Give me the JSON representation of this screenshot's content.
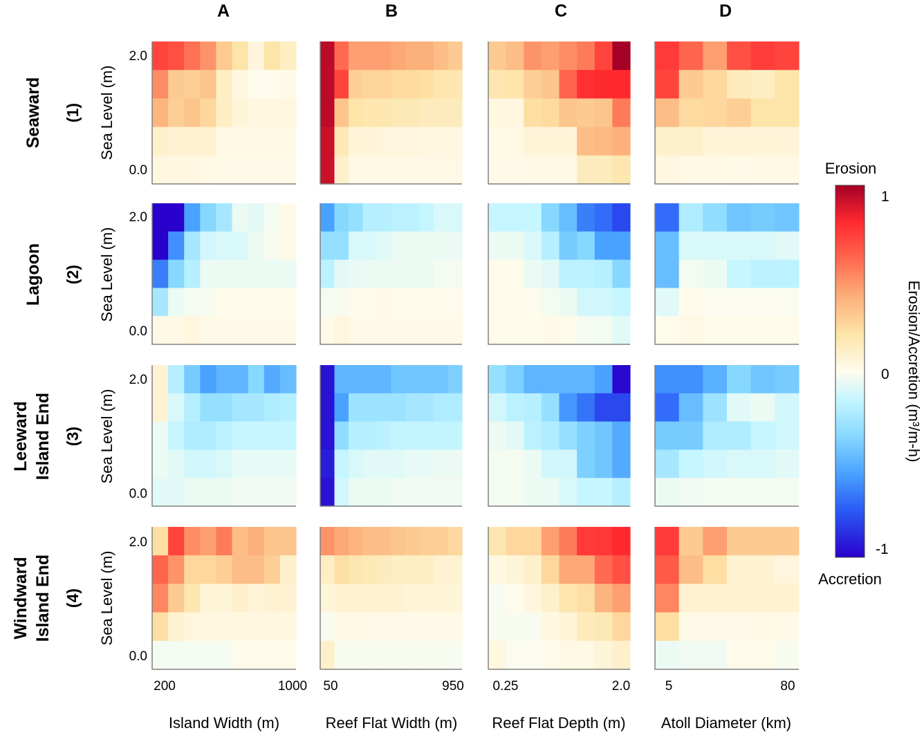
{
  "chart_data": {
    "type": "heatmap",
    "colormap": {
      "stops": [
        [
          -1.0,
          "#2a00cc"
        ],
        [
          -0.75,
          "#2a5af5"
        ],
        [
          -0.55,
          "#4aa2ff"
        ],
        [
          -0.35,
          "#86d8ff"
        ],
        [
          -0.15,
          "#c6f6ff"
        ],
        [
          0.0,
          "#fffcee"
        ],
        [
          0.2,
          "#fde4a8"
        ],
        [
          0.4,
          "#fcb07a"
        ],
        [
          0.6,
          "#ff6a50"
        ],
        [
          0.8,
          "#ff2a30"
        ],
        [
          1.0,
          "#a50026"
        ]
      ]
    },
    "ylabel": "Sea Level (m)",
    "y_tick_labels": [
      "2.0",
      "0.0"
    ],
    "columns": [
      {
        "letter": "A",
        "xlabel": "Island Width (m)",
        "x_tick_labels": [
          "200",
          "1000"
        ]
      },
      {
        "letter": "B",
        "xlabel": "Reef Flat Width (m)",
        "x_tick_labels": [
          "50",
          "950"
        ]
      },
      {
        "letter": "C",
        "xlabel": "Reef Flat Depth (m)",
        "x_tick_labels": [
          "0.25",
          "2.0"
        ]
      },
      {
        "letter": "D",
        "xlabel": "Atoll Diameter (km)",
        "x_tick_labels": [
          "5",
          "80"
        ]
      }
    ],
    "rows": [
      {
        "name_lines": [
          "Seaward"
        ],
        "number": "(1)"
      },
      {
        "name_lines": [
          "Lagoon"
        ],
        "number": "(2)"
      },
      {
        "name_lines": [
          "Leeward",
          "Island End"
        ],
        "number": "(3)"
      },
      {
        "name_lines": [
          "Windward",
          "Island End"
        ],
        "number": "(4)"
      }
    ],
    "colorbar": {
      "top_label": "Erosion",
      "bottom_label": "Accretion",
      "label": "Erosion/Accretion (m³/m-h)",
      "tick_labels": [
        "1",
        "0",
        "-1"
      ],
      "range": [
        -1,
        1
      ]
    },
    "panels": [
      [
        [
          [
            0.72,
            0.68,
            0.58,
            0.48,
            0.3,
            0.2,
            0.05,
            0.2,
            0.12
          ],
          [
            0.5,
            0.3,
            0.28,
            0.32,
            0.12,
            0.04,
            0.0,
            0.0,
            0.02
          ],
          [
            0.38,
            0.28,
            0.32,
            0.25,
            0.12,
            0.06,
            0.04,
            0.04,
            0.04
          ],
          [
            0.1,
            0.08,
            0.08,
            0.08,
            0.03,
            0.03,
            0.03,
            0.03,
            0.03
          ],
          [
            0.04,
            0.04,
            0.04,
            0.03,
            0.02,
            0.02,
            0.02,
            0.02,
            0.02
          ]
        ],
        [
          [
            0.95,
            0.6,
            0.45,
            0.45,
            0.45,
            0.42,
            0.4,
            0.4,
            0.35,
            0.3
          ],
          [
            0.95,
            0.72,
            0.28,
            0.26,
            0.26,
            0.24,
            0.24,
            0.22,
            0.18,
            0.18
          ],
          [
            0.95,
            0.32,
            0.2,
            0.18,
            0.18,
            0.16,
            0.16,
            0.14,
            0.14,
            0.14
          ],
          [
            0.92,
            0.16,
            0.06,
            0.06,
            0.05,
            0.05,
            0.05,
            0.04,
            0.04,
            0.04
          ],
          [
            0.92,
            0.1,
            0.03,
            0.03,
            0.03,
            0.03,
            0.03,
            0.03,
            0.03,
            0.03
          ]
        ],
        [
          [
            0.3,
            0.35,
            0.48,
            0.45,
            0.5,
            0.55,
            0.72,
            1.0
          ],
          [
            0.18,
            0.2,
            0.28,
            0.32,
            0.62,
            0.78,
            0.8,
            0.8
          ],
          [
            0.04,
            0.04,
            0.22,
            0.24,
            0.32,
            0.3,
            0.32,
            0.55
          ],
          [
            0.02,
            0.03,
            0.06,
            0.06,
            0.06,
            0.35,
            0.36,
            0.4
          ],
          [
            0.02,
            0.02,
            0.03,
            0.03,
            0.03,
            0.14,
            0.14,
            0.18
          ]
        ],
        [
          [
            0.75,
            0.62,
            0.45,
            0.68,
            0.74,
            0.72
          ],
          [
            0.72,
            0.3,
            0.25,
            0.15,
            0.12,
            0.2
          ],
          [
            0.35,
            0.24,
            0.25,
            0.28,
            0.2,
            0.2
          ],
          [
            0.1,
            0.1,
            0.06,
            0.06,
            0.06,
            0.06
          ],
          [
            0.04,
            0.03,
            0.03,
            0.02,
            0.03,
            0.03
          ]
        ]
      ],
      [
        [
          [
            -1,
            -1,
            -0.55,
            -0.35,
            -0.25,
            -0.05,
            -0.07,
            -0.03,
            0.02
          ],
          [
            -1,
            -0.6,
            -0.25,
            -0.12,
            -0.1,
            -0.1,
            -0.05,
            -0.02,
            0.02
          ],
          [
            -0.65,
            -0.35,
            -0.2,
            -0.05,
            -0.05,
            -0.05,
            -0.05,
            -0.05,
            -0.05
          ],
          [
            -0.25,
            -0.05,
            -0.03,
            -0.02,
            0.01,
            0.01,
            0.01,
            0.01,
            0.01
          ],
          [
            0.03,
            0.03,
            0.05,
            0.02,
            0.02,
            0.02,
            0.02,
            0.02,
            0.02
          ]
        ],
        [
          [
            -0.55,
            -0.35,
            -0.3,
            -0.2,
            -0.2,
            -0.18,
            -0.18,
            -0.15,
            -0.1,
            -0.1
          ],
          [
            -0.3,
            -0.3,
            -0.1,
            -0.1,
            -0.08,
            -0.05,
            -0.05,
            -0.05,
            -0.05,
            -0.05
          ],
          [
            -0.18,
            -0.07,
            -0.06,
            -0.05,
            -0.05,
            -0.05,
            -0.05,
            -0.05,
            -0.03,
            -0.03
          ],
          [
            -0.03,
            -0.02,
            0.01,
            0.01,
            0.02,
            0.01,
            0.01,
            0.01,
            0.01,
            0.01
          ],
          [
            0.02,
            0.05,
            0.02,
            0.02,
            0.02,
            0.02,
            0.02,
            0.02,
            0.02,
            0.02
          ]
        ],
        [
          [
            -0.15,
            -0.15,
            -0.15,
            -0.35,
            -0.45,
            -0.65,
            -0.7,
            -0.8
          ],
          [
            -0.05,
            -0.05,
            -0.1,
            -0.2,
            -0.4,
            -0.35,
            -0.55,
            -0.55
          ],
          [
            0.01,
            0.01,
            -0.05,
            -0.08,
            -0.18,
            -0.18,
            -0.2,
            -0.35
          ],
          [
            0.01,
            0.01,
            0.01,
            -0.03,
            -0.05,
            -0.12,
            -0.12,
            -0.15
          ],
          [
            0.01,
            0.01,
            0.01,
            0.02,
            0.01,
            -0.03,
            -0.03,
            -0.08
          ]
        ],
        [
          [
            -0.7,
            -0.22,
            -0.32,
            -0.42,
            -0.4,
            -0.42
          ],
          [
            -0.45,
            -0.1,
            -0.1,
            -0.1,
            -0.1,
            -0.08
          ],
          [
            -0.45,
            -0.03,
            -0.05,
            -0.15,
            -0.18,
            -0.18
          ],
          [
            -0.08,
            0.01,
            -0.01,
            -0.01,
            -0.01,
            -0.01
          ],
          [
            0.01,
            0.03,
            0.01,
            0.01,
            0.01,
            0.01
          ]
        ]
      ],
      [
        [
          [
            0.08,
            -0.2,
            -0.4,
            -0.55,
            -0.48,
            -0.48,
            -0.35,
            -0.52,
            -0.45
          ],
          [
            0.08,
            -0.1,
            -0.2,
            -0.3,
            -0.3,
            -0.25,
            -0.25,
            -0.22,
            -0.2
          ],
          [
            -0.05,
            -0.15,
            -0.22,
            -0.22,
            -0.18,
            -0.15,
            -0.15,
            -0.15,
            -0.15
          ],
          [
            -0.05,
            -0.08,
            -0.12,
            -0.12,
            -0.1,
            -0.06,
            -0.06,
            -0.06,
            -0.06
          ],
          [
            -0.08,
            -0.08,
            -0.05,
            -0.05,
            -0.05,
            -0.04,
            -0.04,
            -0.04,
            -0.04
          ]
        ],
        [
          [
            -0.95,
            -0.48,
            -0.48,
            -0.48,
            -0.48,
            -0.42,
            -0.42,
            -0.42,
            -0.42,
            -0.38
          ],
          [
            -0.95,
            -0.55,
            -0.28,
            -0.28,
            -0.28,
            -0.28,
            -0.25,
            -0.25,
            -0.22,
            -0.22
          ],
          [
            -0.95,
            -0.32,
            -0.2,
            -0.2,
            -0.18,
            -0.16,
            -0.16,
            -0.16,
            -0.16,
            -0.16
          ],
          [
            -0.92,
            -0.15,
            -0.1,
            -0.08,
            -0.08,
            -0.08,
            -0.06,
            -0.06,
            -0.05,
            -0.05
          ],
          [
            -0.95,
            -0.12,
            -0.05,
            -0.05,
            -0.05,
            -0.04,
            -0.04,
            -0.04,
            -0.04,
            -0.04
          ]
        ],
        [
          [
            -0.3,
            -0.38,
            -0.48,
            -0.48,
            -0.48,
            -0.48,
            -0.55,
            -0.98
          ],
          [
            -0.12,
            -0.18,
            -0.2,
            -0.3,
            -0.58,
            -0.68,
            -0.8,
            -0.8
          ],
          [
            -0.05,
            -0.07,
            -0.18,
            -0.22,
            -0.3,
            -0.38,
            -0.42,
            -0.52
          ],
          [
            -0.03,
            -0.03,
            -0.05,
            -0.12,
            -0.12,
            -0.38,
            -0.42,
            -0.52
          ],
          [
            -0.03,
            -0.03,
            -0.05,
            -0.05,
            -0.1,
            -0.15,
            -0.15,
            -0.2
          ]
        ],
        [
          [
            -0.6,
            -0.6,
            -0.5,
            -0.35,
            -0.42,
            -0.4
          ],
          [
            -0.7,
            -0.45,
            -0.28,
            -0.08,
            -0.05,
            -0.12
          ],
          [
            -0.4,
            -0.4,
            -0.22,
            -0.22,
            -0.15,
            -0.12
          ],
          [
            -0.25,
            -0.15,
            -0.12,
            -0.1,
            -0.1,
            -0.08
          ],
          [
            -0.05,
            -0.04,
            -0.03,
            -0.03,
            -0.03,
            -0.03
          ]
        ]
      ],
      [
        [
          [
            0.22,
            0.72,
            0.5,
            0.45,
            0.55,
            0.35,
            0.4,
            0.32,
            0.32
          ],
          [
            0.62,
            0.48,
            0.25,
            0.25,
            0.28,
            0.35,
            0.35,
            0.28,
            0.1
          ],
          [
            0.52,
            0.3,
            0.18,
            0.06,
            0.06,
            0.1,
            0.06,
            0.08,
            0.08
          ],
          [
            0.22,
            0.08,
            0.05,
            0.04,
            0.04,
            0.04,
            0.04,
            0.04,
            0.04
          ],
          [
            -0.03,
            -0.03,
            -0.03,
            -0.03,
            -0.03,
            0.01,
            0.01,
            0.01,
            0.01
          ]
        ],
        [
          [
            0.48,
            0.42,
            0.38,
            0.35,
            0.35,
            0.32,
            0.3,
            0.28,
            0.28,
            0.25
          ],
          [
            0.12,
            0.22,
            0.18,
            0.16,
            0.14,
            0.12,
            0.12,
            0.12,
            0.08,
            0.08
          ],
          [
            0.06,
            0.08,
            0.08,
            0.08,
            0.08,
            0.08,
            0.06,
            0.06,
            0.06,
            0.06
          ],
          [
            -0.02,
            0.03,
            0.03,
            0.02,
            0.02,
            0.02,
            0.02,
            0.02,
            0.02,
            0.02
          ],
          [
            0.1,
            -0.02,
            -0.02,
            -0.02,
            -0.02,
            -0.02,
            -0.02,
            -0.02,
            -0.02,
            -0.02
          ]
        ],
        [
          [
            0.18,
            0.25,
            0.25,
            0.45,
            0.55,
            0.75,
            0.76,
            0.8
          ],
          [
            0.04,
            0.06,
            0.1,
            0.25,
            0.42,
            0.42,
            0.6,
            0.68
          ],
          [
            -0.02,
            0.01,
            0.05,
            0.1,
            0.18,
            0.22,
            0.38,
            0.45
          ],
          [
            -0.02,
            -0.02,
            -0.02,
            0.04,
            0.06,
            0.15,
            0.16,
            0.25
          ],
          [
            0.04,
            -0.01,
            -0.01,
            0.01,
            0.03,
            0.03,
            0.06,
            0.1
          ]
        ],
        [
          [
            0.75,
            0.3,
            0.45,
            0.3,
            0.3,
            0.3
          ],
          [
            0.65,
            0.35,
            0.22,
            0.08,
            0.08,
            0.05
          ],
          [
            0.52,
            0.08,
            0.08,
            0.08,
            0.08,
            0.08
          ],
          [
            0.22,
            0.02,
            0.02,
            0.02,
            0.03,
            0.02
          ],
          [
            -0.05,
            -0.04,
            -0.04,
            0.01,
            0.01,
            -0.02
          ]
        ]
      ]
    ]
  }
}
